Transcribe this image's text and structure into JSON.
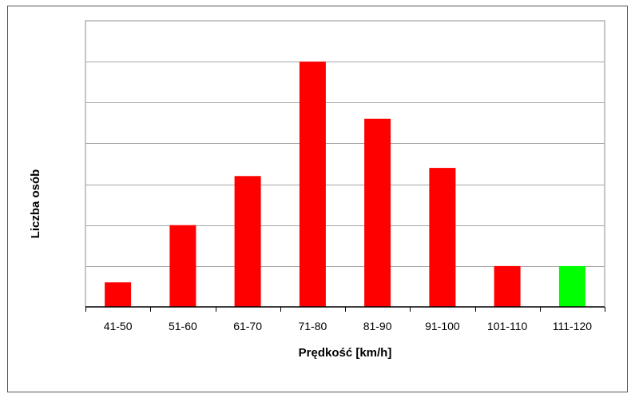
{
  "chart_data": {
    "type": "bar",
    "title": "",
    "xlabel": "Prędkość [km/h]",
    "ylabel": "Liczba osób",
    "categories": [
      "41-50",
      "51-60",
      "61-70",
      "71-80",
      "81-90",
      "91-100",
      "101-110",
      "111-120"
    ],
    "values": [
      0.6,
      2,
      3.2,
      6,
      4.6,
      3.4,
      1,
      1
    ],
    "ylim": [
      0,
      7
    ],
    "y_tick_step": 1,
    "y_tick_labels_shown": false,
    "grid": true,
    "legend": "none",
    "bar_colors": [
      "#ff0000",
      "#ff0000",
      "#ff0000",
      "#ff0000",
      "#ff0000",
      "#ff0000",
      "#ff0000",
      "#00ff00"
    ],
    "gridline_color": "#a6a6a6",
    "axis_color": "#000000"
  }
}
